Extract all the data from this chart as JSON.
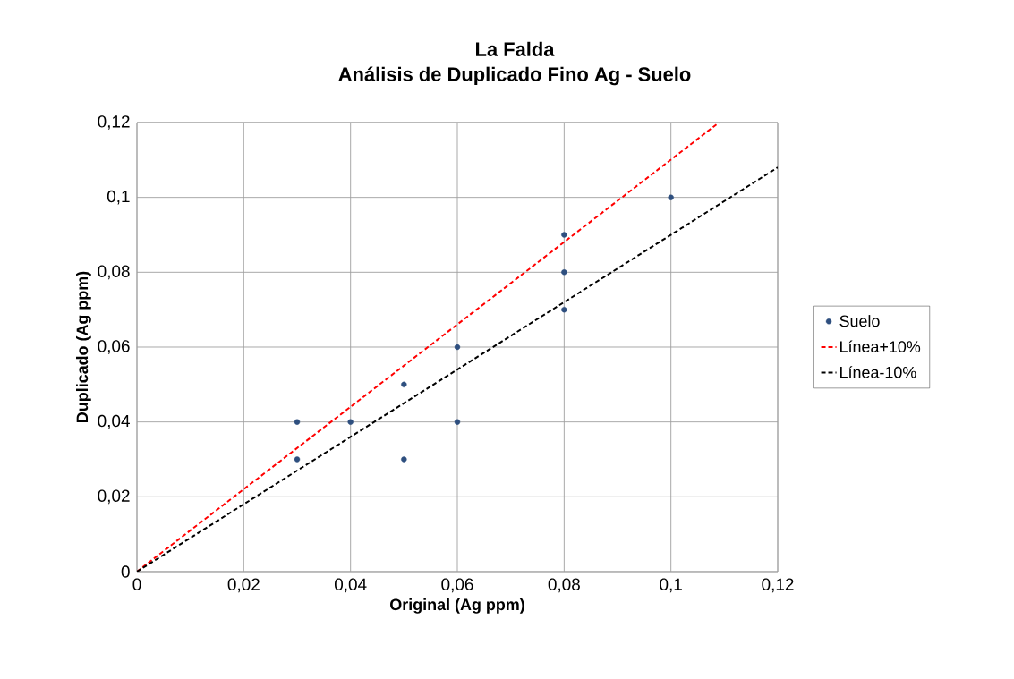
{
  "chart_data": {
    "type": "scatter",
    "title": "La Falda",
    "subtitle": "Análisis de Duplicado Fino Ag - Suelo",
    "xlabel": "Original (Ag ppm)",
    "ylabel": "Duplicado (Ag ppm)",
    "x": [
      0.03,
      0.03,
      0.04,
      0.05,
      0.05,
      0.06,
      0.06,
      0.08,
      0.08,
      0.08,
      0.1
    ],
    "series": [
      {
        "name": "Suelo",
        "color": "#2e4f7f",
        "marker": "circle",
        "values": [
          0.04,
          0.03,
          0.04,
          0.05,
          0.03,
          0.06,
          0.04,
          0.09,
          0.08,
          0.07,
          0.1
        ]
      },
      {
        "name": "Línea+10%",
        "type": "line",
        "color": "#ff0000",
        "line_style": "dashed",
        "marker": "none",
        "x": [
          0,
          0.109
        ],
        "values": [
          0,
          0.12
        ]
      },
      {
        "name": "Línea-10%",
        "type": "line",
        "color": "#000000",
        "line_style": "dashed",
        "marker": "none",
        "x": [
          0,
          0.12
        ],
        "values": [
          0,
          0.108
        ]
      }
    ],
    "xlim": [
      0,
      0.12
    ],
    "ylim": [
      0,
      0.12
    ],
    "xticks": [
      {
        "value": 0,
        "label": "0"
      },
      {
        "value": 0.02,
        "label": "0,02"
      },
      {
        "value": 0.04,
        "label": "0,04"
      },
      {
        "value": 0.06,
        "label": "0,06"
      },
      {
        "value": 0.08,
        "label": "0,08"
      },
      {
        "value": 0.1,
        "label": "0,1"
      },
      {
        "value": 0.12,
        "label": "0,12"
      }
    ],
    "yticks": [
      {
        "value": 0,
        "label": "0"
      },
      {
        "value": 0.02,
        "label": "0,02"
      },
      {
        "value": 0.04,
        "label": "0,04"
      },
      {
        "value": 0.06,
        "label": "0,06"
      },
      {
        "value": 0.08,
        "label": "0,08"
      },
      {
        "value": 0.1,
        "label": "0,1"
      },
      {
        "value": 0.12,
        "label": "0,12"
      }
    ],
    "grid": true,
    "legend": "right"
  }
}
